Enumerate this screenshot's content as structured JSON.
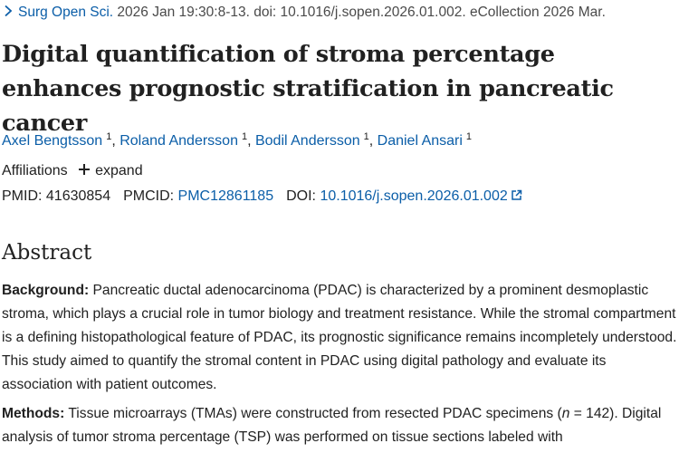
{
  "citation": {
    "journal": "Surg Open Sci.",
    "details": " 2026 Jan 19:30:8-13. doi: 10.1016/j.sopen.2026.01.002. eCollection 2026 Mar."
  },
  "article": {
    "title": "Digital quantification of stroma percentage enhances prognostic stratification in pancreatic cancer"
  },
  "authors": [
    {
      "name": "Axel Bengtsson",
      "aff": "1"
    },
    {
      "name": "Roland Andersson",
      "aff": "1"
    },
    {
      "name": "Bodil Andersson",
      "aff": "1"
    },
    {
      "name": "Daniel Ansari",
      "aff": "1"
    }
  ],
  "affiliations": {
    "label": "Affiliations",
    "expand_label": "expand"
  },
  "identifiers": {
    "pmid_label": "PMID:",
    "pmid": "41630854",
    "pmcid_label": "PMCID:",
    "pmcid": "PMC12861185",
    "doi_label": "DOI:",
    "doi": "10.1016/j.sopen.2026.01.002"
  },
  "abstract": {
    "heading": "Abstract",
    "background_label": "Background:",
    "background_text": "Pancreatic ductal adenocarcinoma (PDAC) is characterized by a prominent desmoplastic stroma, which plays a crucial role in tumor biology and treatment resistance. While the stromal compartment is a defining histopathological feature of PDAC, its prognostic significance remains incompletely understood. This study aimed to quantify the stromal content in PDAC using digital pathology and evaluate its association with patient outcomes.",
    "methods_label": "Methods:",
    "methods_text_1": "Tissue microarrays (TMAs) were constructed from resected PDAC specimens (",
    "methods_n": "n",
    "methods_text_2": " = 142). Digital analysis of tumor stroma percentage (TSP) was performed on tissue sections labeled with"
  },
  "colors": {
    "link": "#0b5ea8",
    "text": "#212121"
  }
}
